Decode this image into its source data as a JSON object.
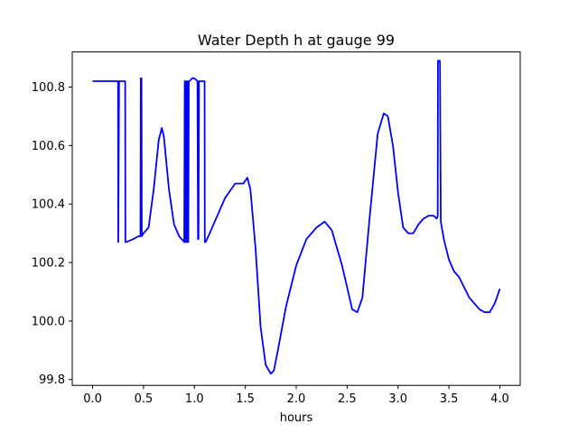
{
  "chart_data": {
    "type": "line",
    "title": "Water Depth h at gauge 99",
    "xlabel": "hours",
    "ylabel": "",
    "xlim": [
      -0.2,
      4.2
    ],
    "ylim": [
      99.78,
      100.92
    ],
    "xticks": [
      0.0,
      0.5,
      1.0,
      1.5,
      2.0,
      2.5,
      3.0,
      3.5,
      4.0
    ],
    "xtick_labels": [
      "0.0",
      "0.5",
      "1.0",
      "1.5",
      "2.0",
      "2.5",
      "3.0",
      "3.5",
      "4.0"
    ],
    "yticks": [
      99.8,
      100.0,
      100.2,
      100.4,
      100.6,
      100.8
    ],
    "ytick_labels": [
      "99.8",
      "100.0",
      "100.2",
      "100.4",
      "100.6",
      "100.8"
    ],
    "grid": false,
    "series": [
      {
        "color": "#0000ff",
        "x": [
          0.0,
          0.24,
          0.245,
          0.25,
          0.252,
          0.26,
          0.32,
          0.322,
          0.33,
          0.4,
          0.45,
          0.47,
          0.473,
          0.48,
          0.483,
          0.5,
          0.55,
          0.6,
          0.65,
          0.68,
          0.7,
          0.75,
          0.8,
          0.85,
          0.9,
          0.905,
          0.91,
          0.915,
          0.92,
          0.925,
          0.93,
          0.935,
          0.94,
          0.945,
          0.95,
          0.98,
          1.0,
          1.03,
          1.035,
          1.04,
          1.045,
          1.05,
          1.1,
          1.102,
          1.11,
          1.15,
          1.2,
          1.3,
          1.4,
          1.48,
          1.52,
          1.55,
          1.6,
          1.65,
          1.7,
          1.75,
          1.78,
          1.82,
          1.9,
          2.0,
          2.1,
          2.2,
          2.28,
          2.35,
          2.45,
          2.55,
          2.6,
          2.65,
          2.72,
          2.8,
          2.86,
          2.9,
          2.95,
          3.0,
          3.05,
          3.1,
          3.15,
          3.2,
          3.25,
          3.3,
          3.35,
          3.38,
          3.39,
          3.392,
          3.41,
          3.412,
          3.42,
          3.43,
          3.44,
          3.45,
          3.5,
          3.55,
          3.6,
          3.7,
          3.8,
          3.85,
          3.9,
          3.95,
          4.0
        ],
        "y": [
          100.82,
          100.82,
          100.82,
          100.82,
          100.27,
          100.82,
          100.82,
          100.27,
          100.27,
          100.28,
          100.29,
          100.29,
          100.83,
          100.83,
          100.29,
          100.3,
          100.32,
          100.45,
          100.62,
          100.66,
          100.63,
          100.45,
          100.33,
          100.29,
          100.27,
          100.82,
          100.27,
          100.82,
          100.27,
          100.82,
          100.27,
          100.82,
          100.27,
          100.82,
          100.82,
          100.83,
          100.83,
          100.82,
          100.28,
          100.28,
          100.82,
          100.82,
          100.82,
          100.27,
          100.27,
          100.3,
          100.34,
          100.42,
          100.47,
          100.47,
          100.49,
          100.45,
          100.25,
          99.98,
          99.85,
          99.82,
          99.83,
          99.9,
          100.05,
          100.19,
          100.28,
          100.32,
          100.34,
          100.31,
          100.19,
          100.04,
          100.03,
          100.08,
          100.35,
          100.64,
          100.71,
          100.7,
          100.6,
          100.44,
          100.32,
          100.3,
          100.3,
          100.33,
          100.35,
          100.36,
          100.36,
          100.35,
          100.36,
          100.89,
          100.89,
          100.88,
          100.34,
          100.32,
          100.3,
          100.28,
          100.21,
          100.17,
          100.15,
          100.08,
          100.04,
          100.03,
          100.03,
          100.06,
          100.11
        ]
      }
    ]
  }
}
